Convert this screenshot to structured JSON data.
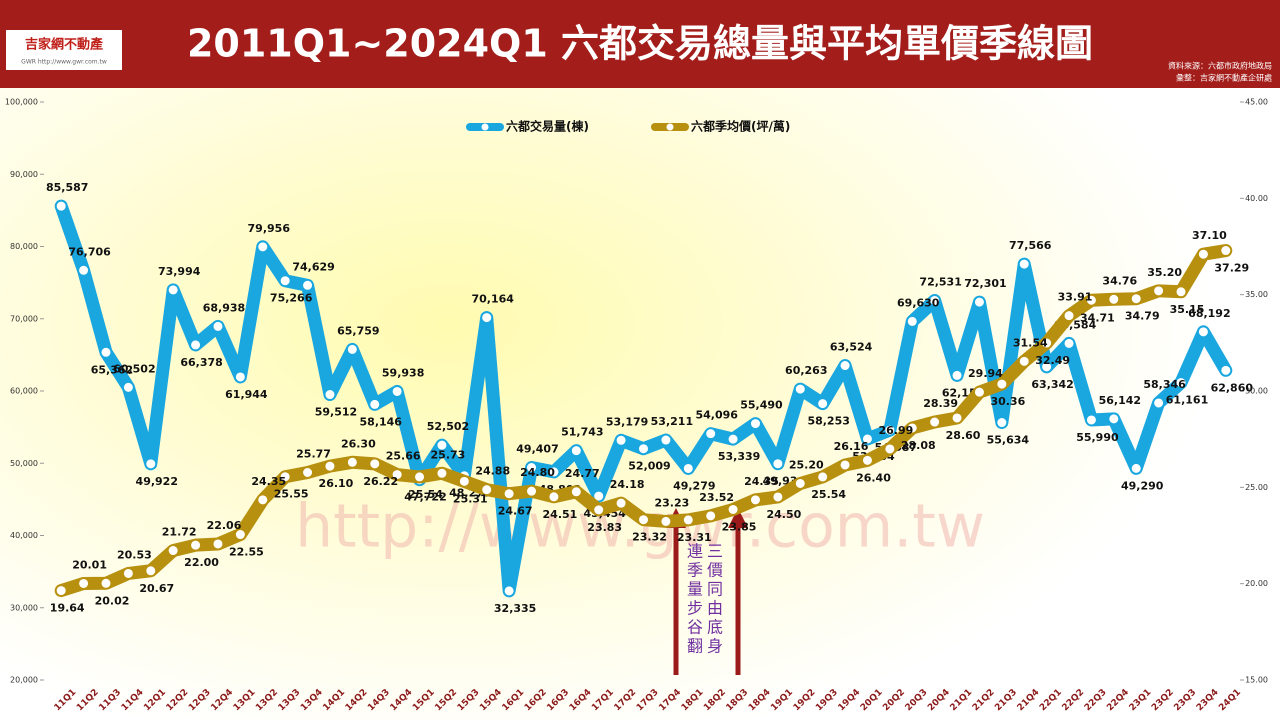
{
  "header": {
    "title": "2011Q1~2024Q1 六都交易總量與平均單價季線圖",
    "logo": "吉家網不動產",
    "logo_url": "GWR http://www.gwr.com.tw",
    "source": "資料來源：六都市政府地政局",
    "compiled": "彙整：吉家網不動產企研處"
  },
  "chart_data": {
    "type": "line",
    "categories": [
      "11Q1",
      "11Q2",
      "11Q3",
      "11Q4",
      "12Q1",
      "12Q2",
      "12Q3",
      "12Q4",
      "13Q1",
      "13Q2",
      "13Q3",
      "13Q4",
      "14Q1",
      "14Q2",
      "14Q3",
      "14Q4",
      "15Q1",
      "15Q2",
      "15Q3",
      "15Q4",
      "16Q1",
      "16Q2",
      "16Q3",
      "16Q4",
      "17Q1",
      "17Q2",
      "17Q3",
      "17Q4",
      "18Q1",
      "18Q2",
      "18Q3",
      "18Q4",
      "19Q1",
      "19Q2",
      "19Q3",
      "19Q4",
      "20Q1",
      "20Q2",
      "20Q3",
      "20Q4",
      "21Q1",
      "21Q2",
      "21Q3",
      "21Q4",
      "22Q1",
      "22Q2",
      "22Q3",
      "22Q4",
      "23Q1",
      "23Q2",
      "23Q3",
      "23Q4",
      "24Q1"
    ],
    "series": [
      {
        "name": "六都交易量(棟)",
        "color": "#1aa7e0",
        "values": [
          85587,
          76706,
          65362,
          60502,
          49922,
          73994,
          66378,
          68938,
          61944,
          79956,
          75266,
          74629,
          59512,
          65759,
          58146,
          59938,
          47722,
          52502,
          48273,
          70164,
          32335,
          49407,
          48802,
          51743,
          45454,
          53179,
          52009,
          53211,
          49279,
          54096,
          53339,
          55490,
          49934,
          60263,
          58253,
          63524,
          53364,
          54587,
          69630,
          72531,
          62157,
          72301,
          55634,
          77566,
          63342,
          66584,
          55990,
          56142,
          49290,
          58346,
          61161,
          68192,
          62860
        ],
        "value_labels": [
          "85,587",
          "76,706",
          "65,362",
          "60,502",
          "49,922",
          "73,994",
          "66,378",
          "68,938",
          "61,944",
          "79,956",
          "75,266",
          "74,629",
          "59,512",
          "65,759",
          "58,146",
          "59,938",
          "47,722",
          "52,502",
          "48,273",
          "70,164",
          "32,335",
          "49,407",
          "48,802",
          "51,743",
          "45,454",
          "53,179",
          "52,009",
          "53,211",
          "49,279",
          "54,096",
          "53,339",
          "55,490",
          "49,934",
          "60,263",
          "58,253",
          "63,524",
          "53,364",
          "54,587",
          "69,630",
          "72,531",
          "62,157",
          "72,301",
          "55,634",
          "77,566",
          "63,342",
          "66,584",
          "55,990",
          "56,142",
          "49,290",
          "58,346",
          "61,161",
          "68,192",
          "62,860"
        ]
      },
      {
        "name": "六都季均價(坪/萬)",
        "color": "#b8900f",
        "axis": "y2",
        "values": [
          19.64,
          20.01,
          20.02,
          20.53,
          20.67,
          21.72,
          22.0,
          22.06,
          22.55,
          24.35,
          25.55,
          25.77,
          26.1,
          26.3,
          26.22,
          25.66,
          25.54,
          25.73,
          25.31,
          24.88,
          24.67,
          24.8,
          24.51,
          24.77,
          23.83,
          24.18,
          23.32,
          23.23,
          23.31,
          23.52,
          23.85,
          24.35,
          24.5,
          25.2,
          25.54,
          26.16,
          26.4,
          26.99,
          28.08,
          28.39,
          28.6,
          29.94,
          30.36,
          31.54,
          32.49,
          33.91,
          34.71,
          34.76,
          34.79,
          35.2,
          35.15,
          37.1,
          37.29
        ],
        "value_labels": [
          "19.64",
          "20.01",
          "20.02",
          "20.53",
          "20.67",
          "21.72",
          "22.00",
          "22.06",
          "22.55",
          "24.35",
          "25.55",
          "25.77",
          "26.10",
          "26.30",
          "26.22",
          "25.66",
          "25.54",
          "25.73",
          "25.31",
          "24.88",
          "24.67",
          "24.80",
          "24.51",
          "24.77",
          "23.83",
          "24.18",
          "23.32",
          "23.23",
          "23.31",
          "23.52",
          "23.85",
          "24.35",
          "24.50",
          "25.20",
          "25.54",
          "26.16",
          "26.40",
          "26.99",
          "28.08",
          "28.39",
          "28.60",
          "29.94",
          "30.36",
          "31.54",
          "32.49",
          "33.91",
          "34.71",
          "34.76",
          "34.79",
          "35.20",
          "35.15",
          "37.10",
          "37.29"
        ]
      }
    ],
    "ylim": [
      20000,
      100000
    ],
    "yticks": [
      {
        "value": 20000,
        "label": "20,000"
      },
      {
        "value": 30000,
        "label": "30,000"
      },
      {
        "value": 40000,
        "label": "40,000"
      },
      {
        "value": 50000,
        "label": "50,000"
      },
      {
        "value": 60000,
        "label": "60,000"
      },
      {
        "value": 70000,
        "label": "70,000"
      },
      {
        "value": 80000,
        "label": "80,000"
      },
      {
        "value": 90000,
        "label": "90,000"
      },
      {
        "value": 100000,
        "label": "100,000"
      }
    ],
    "y2lim": [
      15,
      45
    ],
    "y2ticks": [
      {
        "value": 15,
        "label": "15.00"
      },
      {
        "value": 20,
        "label": "20.00"
      },
      {
        "value": 25,
        "label": "25.00"
      },
      {
        "value": 30,
        "label": "30.00"
      },
      {
        "value": 35,
        "label": "35.00"
      },
      {
        "value": 40,
        "label": "40.00"
      },
      {
        "value": 45,
        "label": "45.00"
      }
    ],
    "legend": "top",
    "annotation": [
      "連三",
      "季價",
      "量同",
      "步由",
      "谷底",
      "翻身"
    ],
    "watermark": "http://www.gwr.com.tw"
  }
}
